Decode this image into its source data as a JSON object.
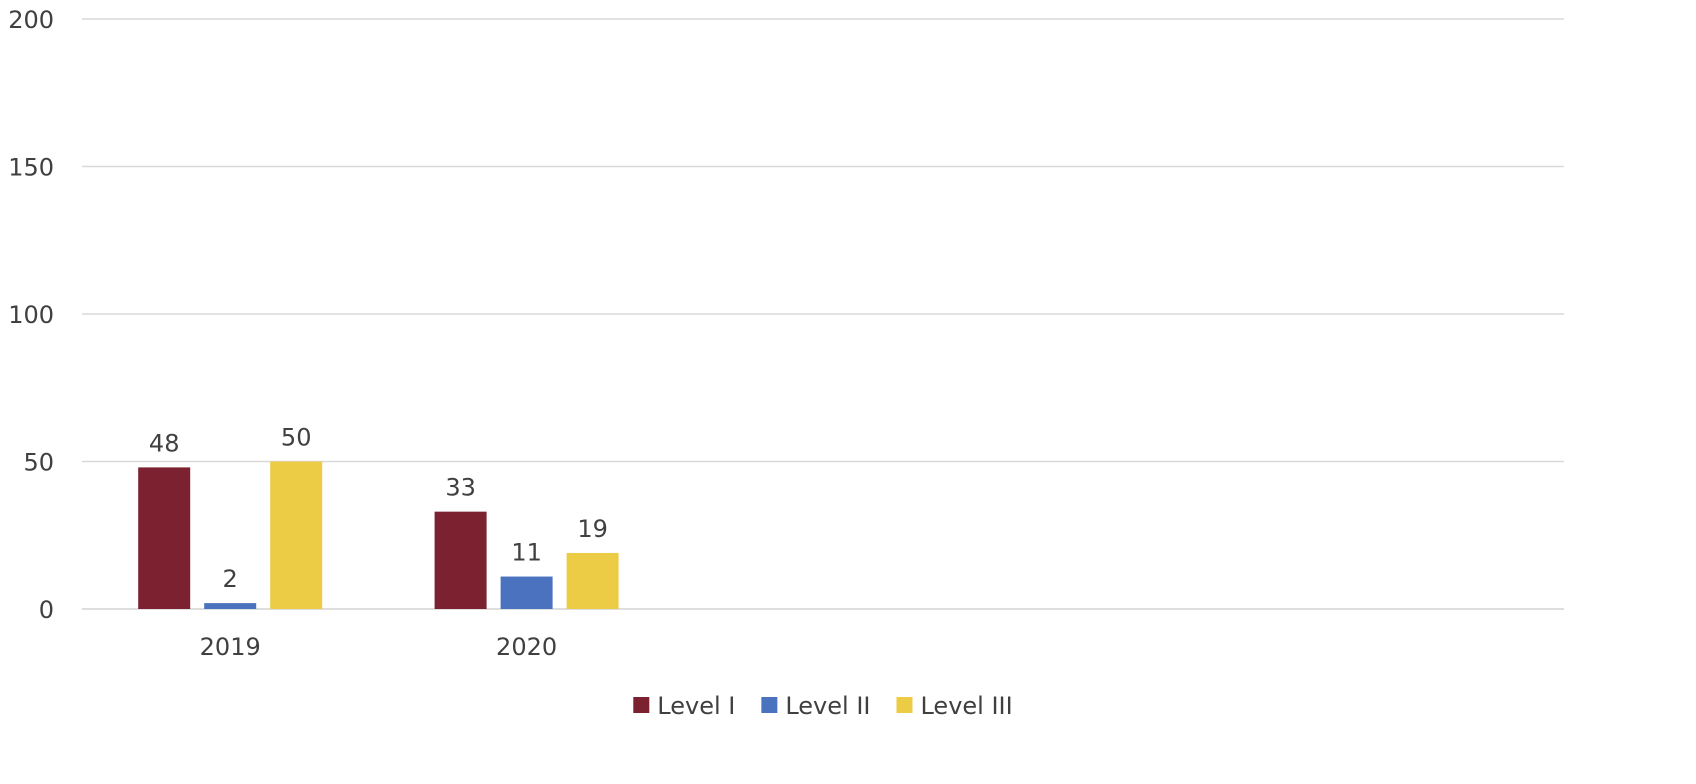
{
  "chart_data": {
    "type": "bar",
    "title": "",
    "xlabel": "",
    "ylabel": "",
    "categories": [
      "2019",
      "2020",
      "",
      "",
      ""
    ],
    "series": [
      {
        "name": "Level I",
        "values": [
          48,
          33,
          null,
          null,
          null
        ],
        "color": "#7B2130"
      },
      {
        "name": "Level II",
        "values": [
          2,
          11,
          null,
          null,
          null
        ],
        "color": "#4A72BE"
      },
      {
        "name": "Level III",
        "values": [
          50,
          19,
          null,
          null,
          null
        ],
        "color": "#ECCB45"
      }
    ],
    "ylim": [
      0,
      200
    ],
    "yticks": [
      "0",
      "50",
      "100",
      "150",
      "200"
    ],
    "grid": true,
    "legend_position": "bottom"
  }
}
